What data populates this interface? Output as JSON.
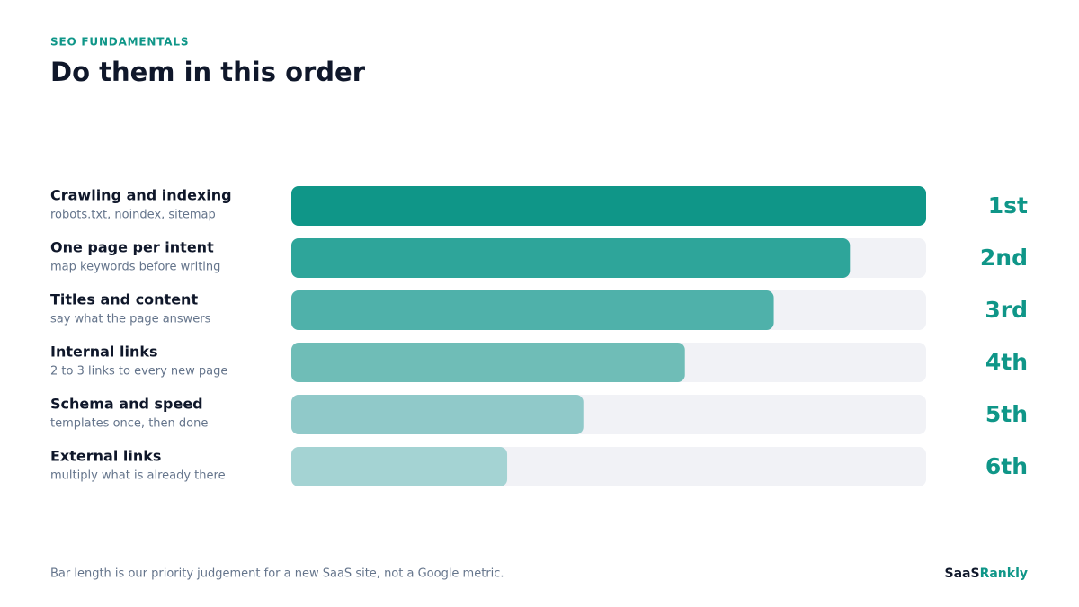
{
  "chart_data": {
    "type": "bar",
    "orientation": "horizontal",
    "eyebrow": "SEO FUNDAMENTALS",
    "title": "Do them in this order",
    "categories": [
      "Crawling and indexing",
      "One page per intent",
      "Titles and content",
      "Internal links",
      "Schema and speed",
      "External links"
    ],
    "descriptions": [
      "robots.txt, noindex, sitemap",
      "map keywords before writing",
      "say what the page answers",
      "2 to 3 links to every new page",
      "templates once, then done",
      "multiply what is already there"
    ],
    "values": [
      100,
      88,
      76,
      62,
      46,
      34
    ],
    "ranks": [
      "1st",
      "2nd",
      "3rd",
      "4th",
      "5th",
      "6th"
    ],
    "colors": [
      "#0f9688",
      "#2ea59a",
      "#4fb1aa",
      "#6fbdb7",
      "#90c9c9",
      "#a4d3d3"
    ],
    "xlim": [
      0,
      100
    ],
    "track_color": "#f1f2f6",
    "footnote": "Bar length is our priority judgement for a new SaaS site, not a Google metric.",
    "brand": [
      "SaaS",
      "Rankly"
    ]
  }
}
